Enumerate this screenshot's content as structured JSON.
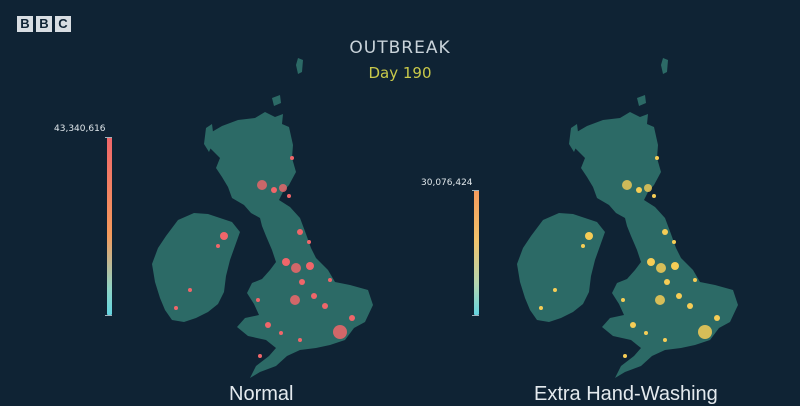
{
  "logo": {
    "letters": [
      "B",
      "B",
      "C"
    ]
  },
  "header": {
    "title": "OUTBREAK",
    "day": "Day 190"
  },
  "colors": {
    "background": "#0f2334",
    "land": "#2c6a66",
    "normal_dots": "#f0666a",
    "handwash_dots": "#f6cd56"
  },
  "panels": [
    {
      "label": "Normal",
      "scale_max": "43,340,616"
    },
    {
      "label": "Extra Hand-Washing",
      "scale_max": "30,076,424"
    }
  ]
}
